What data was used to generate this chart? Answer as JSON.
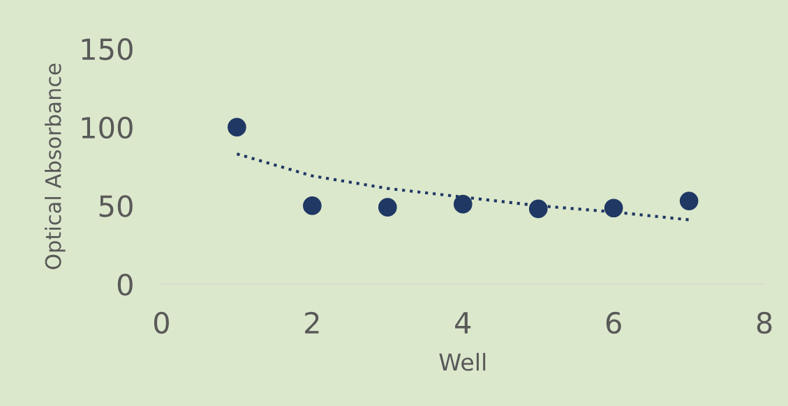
{
  "chart_data": {
    "type": "scatter",
    "xlabel": "Well",
    "ylabel": "Optical Absorbance",
    "xlim": [
      0,
      8
    ],
    "xticks": [
      0,
      2,
      4,
      6,
      8
    ],
    "ylim": [
      0,
      150
    ],
    "yticks": [
      0,
      50,
      100,
      150
    ],
    "grid": false,
    "legend": false,
    "marker": "circle",
    "series": [
      {
        "color": "#1f3864",
        "x": [
          1,
          2,
          3,
          4,
          5,
          6,
          7
        ],
        "values": [
          100,
          50,
          49,
          51,
          48,
          48.5,
          53
        ]
      },
      {
        "type": "line",
        "line_style": "dotted",
        "marker": "none",
        "color": "#1f3864",
        "x": [
          1,
          2,
          3,
          4,
          5,
          6,
          7
        ],
        "values": [
          83,
          69,
          61,
          55.5,
          50,
          46,
          41
        ]
      }
    ]
  }
}
